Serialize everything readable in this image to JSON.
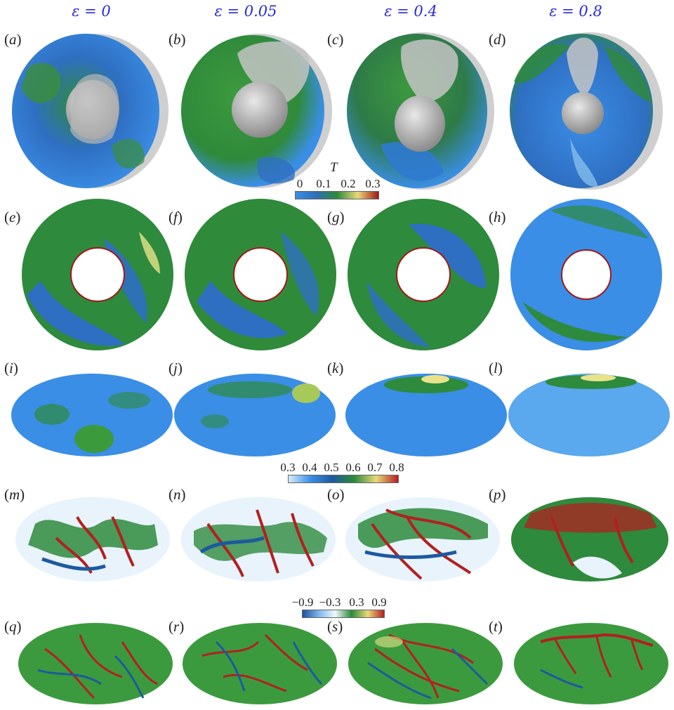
{
  "columns": [
    {
      "eps": "ε = 0"
    },
    {
      "eps": "ε = 0.05"
    },
    {
      "eps": "ε = 0.4"
    },
    {
      "eps": "ε = 0.8"
    }
  ],
  "panel_labels": [
    "a",
    "b",
    "c",
    "d",
    "e",
    "f",
    "g",
    "h",
    "i",
    "j",
    "k",
    "l",
    "m",
    "n",
    "o",
    "p",
    "q",
    "r",
    "s",
    "t"
  ],
  "colorbars": [
    {
      "title": "T",
      "ticks": [
        "0",
        "0.1",
        "0.2",
        "0.3"
      ],
      "colors": [
        "#3a8ee6",
        "#2f6db8",
        "#2c8a3a",
        "#e8d97a",
        "#a01818"
      ]
    },
    {
      "title": "",
      "ticks": [
        "0.3",
        "0.4",
        "0.5",
        "0.6",
        "0.7",
        "0.8"
      ],
      "colors": [
        "#d8ecfa",
        "#3a8ee6",
        "#1d5a9e",
        "#2c8a3a",
        "#e8d97a",
        "#b22020"
      ]
    },
    {
      "title": "",
      "ticks": [
        "−0.9",
        "−0.3",
        "0.3",
        "0.9"
      ],
      "colors": [
        "#1d4fa0",
        "#7fb6ea",
        "#eef7fd",
        "#2c8a3a",
        "#e8d97a",
        "#b22020"
      ]
    }
  ]
}
